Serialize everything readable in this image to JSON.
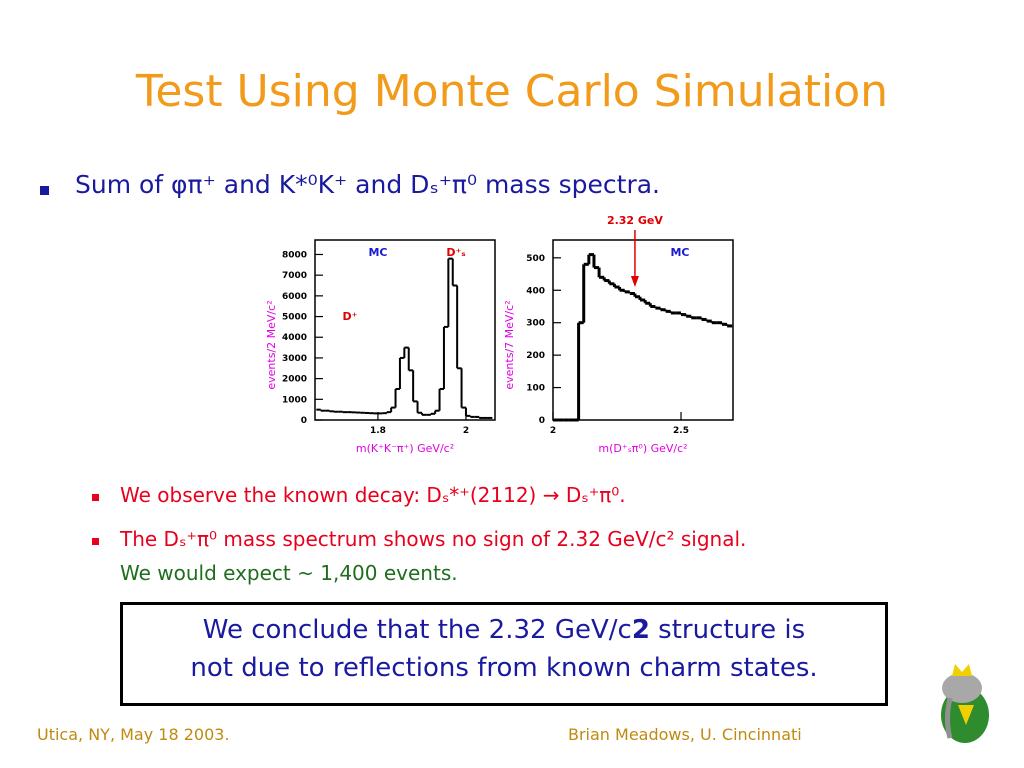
{
  "title": "Test Using Monte Carlo Simulation",
  "bullet": "Sum of φπ⁺ and K*⁰K⁺ and Dₛ⁺π⁰ mass spectra.",
  "sub_bullets": [
    "We observe the known decay: Dₛ*⁺(2112) → Dₛ⁺π⁰.",
    "The Dₛ⁺π⁰ mass spectrum shows no sign of 2.32 GeV/c² signal."
  ],
  "expectation": "We would expect ~ 1,400 events.",
  "conclusion": [
    "We conclude that the 2.32 GeV/c",
    "2",
    " structure is",
    "not due to reflections from known charm states."
  ],
  "footer": {
    "left": "Utica, NY, May 18 2003.",
    "right": "Brian Meadows, U. Cincinnati"
  },
  "chart_data": [
    {
      "type": "histogram",
      "x_label": "m(K⁺K⁻π⁺) GeV/c²",
      "y_label": "events/2 MeV/c²",
      "color": "#000000",
      "labels": [
        {
          "text": "MC",
          "color": "#1a1ad0"
        },
        {
          "text": "D⁺ₛ",
          "color": "#e00000"
        },
        {
          "text": "D⁺",
          "color": "#e00000"
        }
      ],
      "bins": [
        1.66,
        1.67,
        1.68,
        1.69,
        1.7,
        1.71,
        1.72,
        1.73,
        1.74,
        1.75,
        1.76,
        1.77,
        1.78,
        1.79,
        1.8,
        1.81,
        1.82,
        1.83,
        1.84,
        1.85,
        1.86,
        1.87,
        1.88,
        1.89,
        1.9,
        1.91,
        1.92,
        1.93,
        1.94,
        1.95,
        1.96,
        1.97,
        1.98,
        1.99,
        2.0,
        2.01,
        2.02,
        2.03,
        2.04,
        2.05,
        2.06
      ],
      "values": [
        500,
        450,
        450,
        420,
        400,
        400,
        380,
        380,
        370,
        360,
        350,
        340,
        330,
        320,
        320,
        330,
        380,
        600,
        1500,
        3000,
        3500,
        2400,
        900,
        350,
        250,
        250,
        300,
        450,
        1500,
        4500,
        7800,
        6500,
        2500,
        600,
        200,
        150,
        150,
        100,
        100,
        100
      ],
      "xlim": [
        1.657,
        2.066
      ],
      "xticks": [
        1.8,
        2
      ],
      "ylim": [
        0,
        8700
      ],
      "yticks": [
        0,
        1000,
        2000,
        3000,
        4000,
        5000,
        6000,
        7000,
        8000
      ]
    },
    {
      "type": "histogram",
      "x_label": "m(D⁺ₛπ⁰) GeV/c²",
      "y_label": "events/7 MeV/c²",
      "color": "#000000",
      "labels": [
        {
          "text": "MC",
          "color": "#1a1ad0"
        }
      ],
      "annotation": {
        "text": "2.32 GeV",
        "x": 2.32,
        "color": "#e00000"
      },
      "bins": [
        2.0,
        2.02,
        2.04,
        2.06,
        2.08,
        2.1,
        2.12,
        2.14,
        2.16,
        2.18,
        2.2,
        2.22,
        2.24,
        2.26,
        2.28,
        2.3,
        2.32,
        2.34,
        2.36,
        2.38,
        2.4,
        2.42,
        2.44,
        2.46,
        2.48,
        2.5,
        2.52,
        2.54,
        2.56,
        2.58,
        2.6,
        2.62,
        2.64,
        2.66,
        2.68,
        2.7
      ],
      "values": [
        0,
        0,
        0,
        0,
        0,
        300,
        480,
        510,
        470,
        440,
        430,
        420,
        410,
        400,
        395,
        390,
        380,
        370,
        360,
        350,
        345,
        340,
        335,
        330,
        330,
        325,
        320,
        315,
        315,
        310,
        305,
        300,
        300,
        295,
        290
      ],
      "xlim": [
        2,
        2.703
      ],
      "xticks": [
        2,
        2.5
      ],
      "ylim": [
        0,
        555
      ],
      "yticks": [
        0,
        100,
        200,
        300,
        400,
        500
      ]
    }
  ]
}
